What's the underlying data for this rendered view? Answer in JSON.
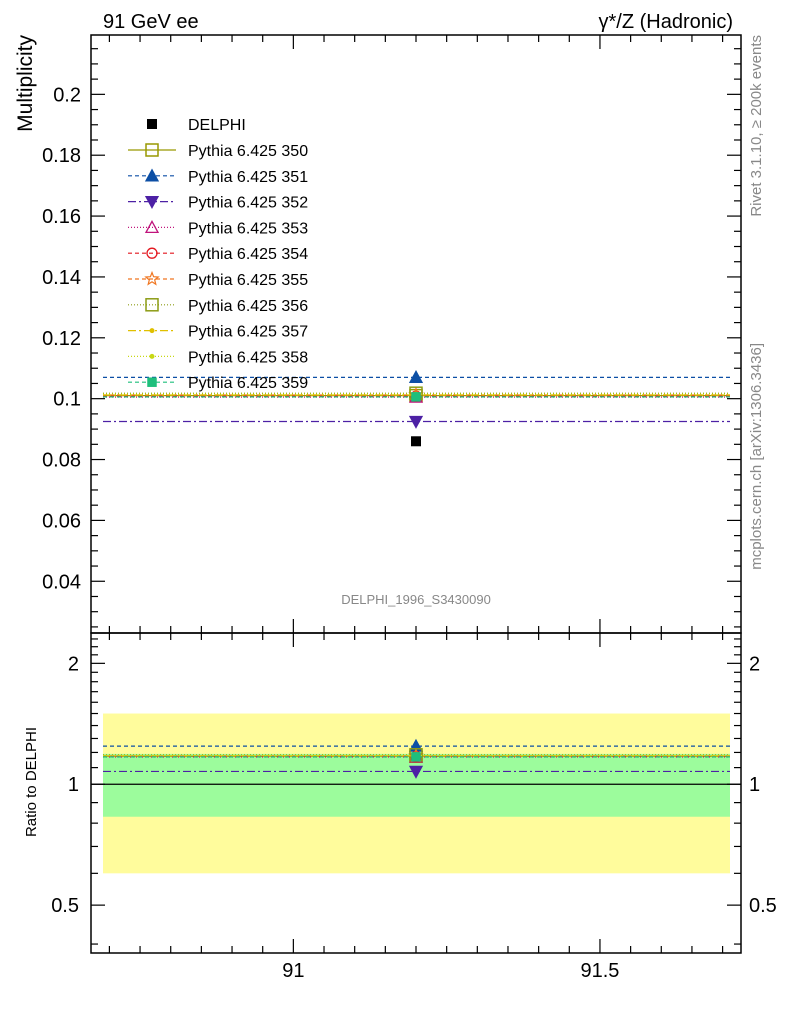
{
  "header": {
    "left": "91 GeV ee",
    "right": "γ*/Z (Hadronic)"
  },
  "side": {
    "rivet": "Rivet 3.1.10, ≥ 200k events",
    "mcplots": "mcplots.cern.ch [arXiv:1306.3436]"
  },
  "watermark": "DELPHI_1996_S3430090",
  "colors": {
    "data": "#000000",
    "band_inner": "#9cfc9c",
    "band_outer": "#fffc9c"
  },
  "chart_data": [
    {
      "type": "scatter",
      "panel": "main",
      "ylabel": "Multiplicity",
      "xlim": [
        90.67,
        91.73
      ],
      "ylim": [
        0.023,
        0.2195
      ],
      "yticks": [
        0.04,
        0.06,
        0.08,
        0.1,
        0.12,
        0.14,
        0.16,
        0.18,
        0.2
      ],
      "ytick_labels": [
        "0.04",
        "0.06",
        "0.08",
        "0.1",
        "0.12",
        "0.14",
        "0.16",
        "0.18",
        "0.2"
      ],
      "legend_position": "top-left",
      "data": {
        "name": "DELPHI",
        "x": 91.2,
        "y": 0.086
      },
      "series": [
        {
          "name": "Pythia 6.425 350",
          "value": 0.101,
          "color": "#999900",
          "dash": "",
          "marker": "square-open"
        },
        {
          "name": "Pythia 6.425 351",
          "value": 0.107,
          "color": "#0c4fa5",
          "dash": "4,3",
          "marker": "triangle-up-filled"
        },
        {
          "name": "Pythia 6.425 352",
          "value": 0.0925,
          "color": "#4d21a5",
          "dash": "8,3,2,3",
          "marker": "triangle-down-filled"
        },
        {
          "name": "Pythia 6.425 353",
          "value": 0.1005,
          "color": "#c0147c",
          "dash": "1,2",
          "marker": "triangle-up-open"
        },
        {
          "name": "Pythia 6.425 354",
          "value": 0.1008,
          "color": "#e3161e",
          "dash": "4,3",
          "marker": "circle-open"
        },
        {
          "name": "Pythia 6.425 355",
          "value": 0.1012,
          "color": "#f07620",
          "dash": "4,3",
          "marker": "star-open"
        },
        {
          "name": "Pythia 6.425 356",
          "value": 0.1018,
          "color": "#8c9c14",
          "dash": "1,2",
          "marker": "square-open"
        },
        {
          "name": "Pythia 6.425 357",
          "value": 0.1012,
          "color": "#e0c000",
          "dash": "8,3,2,3",
          "marker": "dot"
        },
        {
          "name": "Pythia 6.425 358",
          "value": 0.1015,
          "color": "#c8d814",
          "dash": "1,2",
          "marker": "dot"
        },
        {
          "name": "Pythia 6.425 359",
          "value": 0.1006,
          "color": "#1ebf7c",
          "dash": "4,3",
          "marker": "square-filled"
        }
      ]
    },
    {
      "type": "scatter",
      "panel": "ratio",
      "ylabel": "Ratio to DELPHI",
      "xlabel": "",
      "xlim": [
        90.67,
        91.73
      ],
      "ylim": [
        0.38,
        2.38
      ],
      "yticks": [
        0.5,
        1,
        2
      ],
      "ytick_labels": [
        "0.5",
        "1",
        "2"
      ],
      "xticks": [
        91,
        91.5
      ],
      "xtick_labels": [
        "91",
        "91.5"
      ],
      "band_inner": [
        0.83,
        1.19
      ],
      "band_outer": [
        0.6,
        1.5
      ],
      "ratios": [
        1.174,
        1.244,
        1.076,
        1.169,
        1.172,
        1.177,
        1.184,
        1.177,
        1.18,
        1.17
      ]
    }
  ]
}
